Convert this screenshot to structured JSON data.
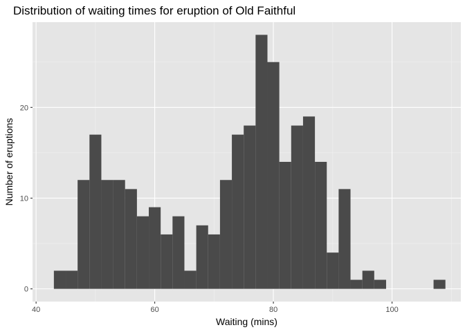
{
  "chart_data": {
    "type": "bar",
    "title": "Distribution of waiting times for eruption of Old Faithful",
    "xlabel": "Waiting (mins)",
    "ylabel": "Number of eruptions",
    "xlim": [
      39.4,
      111.6
    ],
    "ylim": [
      -1.4,
      29.4
    ],
    "x_ticks": [
      40,
      60,
      80,
      100
    ],
    "y_ticks": [
      0,
      10,
      20
    ],
    "grid": true,
    "bin_width": 2.0,
    "bins": [
      {
        "x0": 43,
        "x1": 45,
        "count": 2
      },
      {
        "x0": 45,
        "x1": 47,
        "count": 2
      },
      {
        "x0": 47,
        "x1": 49,
        "count": 12
      },
      {
        "x0": 49,
        "x1": 51,
        "count": 17
      },
      {
        "x0": 51,
        "x1": 53,
        "count": 12
      },
      {
        "x0": 53,
        "x1": 55,
        "count": 12
      },
      {
        "x0": 55,
        "x1": 57,
        "count": 11
      },
      {
        "x0": 57,
        "x1": 59,
        "count": 8
      },
      {
        "x0": 59,
        "x1": 61,
        "count": 9
      },
      {
        "x0": 61,
        "x1": 63,
        "count": 6
      },
      {
        "x0": 63,
        "x1": 65,
        "count": 8
      },
      {
        "x0": 65,
        "x1": 67,
        "count": 2
      },
      {
        "x0": 67,
        "x1": 69,
        "count": 7
      },
      {
        "x0": 69,
        "x1": 71,
        "count": 6
      },
      {
        "x0": 71,
        "x1": 73,
        "count": 12
      },
      {
        "x0": 73,
        "x1": 75,
        "count": 17
      },
      {
        "x0": 75,
        "x1": 77,
        "count": 18
      },
      {
        "x0": 77,
        "x1": 79,
        "count": 28
      },
      {
        "x0": 79,
        "x1": 81,
        "count": 25
      },
      {
        "x0": 81,
        "x1": 83,
        "count": 14
      },
      {
        "x0": 83,
        "x1": 85,
        "count": 18
      },
      {
        "x0": 85,
        "x1": 87,
        "count": 19
      },
      {
        "x0": 87,
        "x1": 89,
        "count": 14
      },
      {
        "x0": 89,
        "x1": 91,
        "count": 4
      },
      {
        "x0": 91,
        "x1": 93,
        "count": 11
      },
      {
        "x0": 93,
        "x1": 95,
        "count": 1
      },
      {
        "x0": 95,
        "x1": 97,
        "count": 2
      },
      {
        "x0": 97,
        "x1": 99,
        "count": 1
      },
      {
        "x0": 99,
        "x1": 101,
        "count": 0
      },
      {
        "x0": 101,
        "x1": 103,
        "count": 0
      },
      {
        "x0": 103,
        "x1": 105,
        "count": 0
      },
      {
        "x0": 105,
        "x1": 107,
        "count": 0
      },
      {
        "x0": 107,
        "x1": 109,
        "count": 1
      }
    ],
    "colors": {
      "bar": "#4a4a4a",
      "panel": "#e5e5e5",
      "grid_major": "#ffffff",
      "grid_minor": "#f2f2f2",
      "tick_label": "#4d4d4d",
      "tick_mark": "#333333"
    }
  }
}
